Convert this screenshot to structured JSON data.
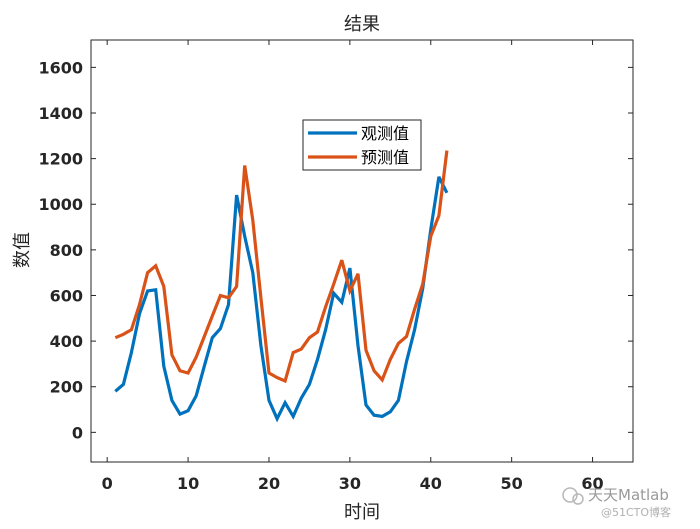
{
  "chart_data": {
    "type": "line",
    "title": "结果",
    "xlabel": "时间",
    "ylabel": "数值",
    "xlim": [
      -2,
      65
    ],
    "ylim": [
      -130,
      1720
    ],
    "xticks": [
      0,
      10,
      20,
      30,
      40,
      50,
      60
    ],
    "yticks": [
      0,
      200,
      400,
      600,
      800,
      1000,
      1200,
      1400,
      1600
    ],
    "grid": false,
    "legend_position": "upper-center",
    "series": [
      {
        "name": "观测值",
        "color": "#0072BD",
        "x": [
          1,
          2,
          3,
          4,
          5,
          6,
          7,
          8,
          9,
          10,
          11,
          12,
          13,
          14,
          15,
          16,
          17,
          18,
          19,
          20,
          21,
          22,
          23,
          24,
          25,
          26,
          27,
          28,
          29,
          30,
          31,
          32,
          33,
          34,
          35,
          36,
          37,
          38,
          39,
          40,
          41,
          42
        ],
        "values": [
          180,
          210,
          350,
          520,
          620,
          625,
          290,
          140,
          80,
          95,
          160,
          290,
          415,
          455,
          560,
          1040,
          860,
          700,
          380,
          140,
          60,
          130,
          70,
          150,
          210,
          320,
          450,
          610,
          570,
          720,
          380,
          120,
          75,
          70,
          90,
          140,
          310,
          450,
          630,
          890,
          1120,
          1050
        ]
      },
      {
        "name": "预测值",
        "color": "#D95319",
        "x": [
          1,
          2,
          3,
          4,
          5,
          6,
          7,
          8,
          9,
          10,
          11,
          12,
          13,
          14,
          15,
          16,
          17,
          18,
          19,
          20,
          21,
          22,
          23,
          24,
          25,
          26,
          27,
          28,
          29,
          30,
          31,
          32,
          33,
          34,
          35,
          36,
          37,
          38,
          39,
          40,
          41,
          42
        ],
        "values": [
          415,
          430,
          450,
          560,
          700,
          730,
          640,
          340,
          270,
          260,
          330,
          420,
          510,
          600,
          590,
          640,
          1170,
          930,
          590,
          260,
          240,
          225,
          350,
          365,
          415,
          440,
          550,
          650,
          755,
          620,
          695,
          360,
          270,
          230,
          320,
          390,
          420,
          540,
          650,
          860,
          950,
          1235
        ]
      }
    ]
  },
  "watermark": {
    "brand": "天天Matlab",
    "sub": "@51CTO博客"
  }
}
